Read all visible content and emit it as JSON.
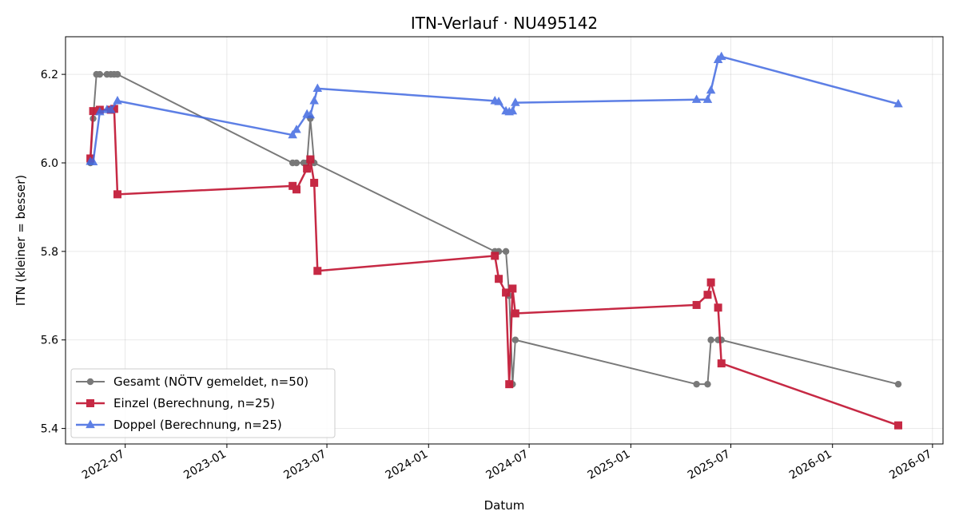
{
  "chart_data": {
    "type": "line",
    "title": "ITN-Verlauf · NU495142",
    "xlabel": "Datum",
    "ylabel": "ITN  (kleiner = besser)",
    "x_axis": {
      "type": "date",
      "range": [
        "2022-03-15",
        "2026-07-20"
      ],
      "ticks": [
        "2022-07-01",
        "2023-01-01",
        "2023-07-01",
        "2024-01-01",
        "2024-07-01",
        "2025-01-01",
        "2025-07-01",
        "2026-01-01",
        "2026-07-01"
      ],
      "tick_labels": [
        "2022-07",
        "2023-01",
        "2023-07",
        "2024-01",
        "2024-07",
        "2025-01",
        "2025-07",
        "2026-01",
        "2026-07"
      ],
      "tick_rotation": 30
    },
    "y_axis": {
      "range": [
        5.365,
        6.285
      ],
      "ticks": [
        5.4,
        5.6,
        5.8,
        6.0,
        6.2
      ],
      "tick_labels": [
        "5.4",
        "5.6",
        "5.8",
        "6.0",
        "6.2"
      ]
    },
    "grid": true,
    "legend_position": "lower-left",
    "series": [
      {
        "name": "Gesamt (NÖTV gemeldet, n=50)",
        "color": "#4d4d4d",
        "marker": "circle",
        "points": [
          [
            "2022-04-29",
            6.0
          ],
          [
            "2022-05-04",
            6.1
          ],
          [
            "2022-05-10",
            6.2
          ],
          [
            "2022-05-16",
            6.2
          ],
          [
            "2022-05-29",
            6.2
          ],
          [
            "2022-06-05",
            6.2
          ],
          [
            "2022-06-11",
            6.2
          ],
          [
            "2022-06-17",
            6.2
          ],
          [
            "2023-04-30",
            6.0
          ],
          [
            "2023-05-07",
            6.0
          ],
          [
            "2023-05-20",
            6.0
          ],
          [
            "2023-05-26",
            6.0
          ],
          [
            "2023-06-01",
            6.1
          ],
          [
            "2023-06-08",
            6.0
          ],
          [
            "2024-04-30",
            5.8
          ],
          [
            "2024-05-07",
            5.8
          ],
          [
            "2024-05-20",
            5.8
          ],
          [
            "2024-05-26",
            5.7
          ],
          [
            "2024-06-01",
            5.5
          ],
          [
            "2024-06-06",
            5.6
          ],
          [
            "2025-04-30",
            5.5
          ],
          [
            "2025-05-20",
            5.5
          ],
          [
            "2025-05-26",
            5.6
          ],
          [
            "2025-06-08",
            5.6
          ],
          [
            "2025-06-14",
            5.6
          ],
          [
            "2026-04-30",
            5.5
          ]
        ]
      },
      {
        "name": "Einzel (Berechnung, n=25)",
        "color": "#c41e3a",
        "marker": "square",
        "points": [
          [
            "2022-04-29",
            6.01
          ],
          [
            "2022-05-04",
            6.117
          ],
          [
            "2022-05-16",
            6.12
          ],
          [
            "2022-06-05",
            6.12
          ],
          [
            "2022-06-11",
            6.122
          ],
          [
            "2022-06-17",
            5.929
          ],
          [
            "2023-04-30",
            5.948
          ],
          [
            "2023-05-07",
            5.94
          ],
          [
            "2023-05-26",
            5.987
          ],
          [
            "2023-06-01",
            6.008
          ],
          [
            "2023-06-08",
            5.955
          ],
          [
            "2023-06-14",
            5.756
          ],
          [
            "2024-04-30",
            5.79
          ],
          [
            "2024-05-07",
            5.738
          ],
          [
            "2024-05-20",
            5.707
          ],
          [
            "2024-05-26",
            5.5
          ],
          [
            "2024-06-01",
            5.716
          ],
          [
            "2024-06-06",
            5.66
          ],
          [
            "2025-04-30",
            5.679
          ],
          [
            "2025-05-20",
            5.702
          ],
          [
            "2025-05-26",
            5.73
          ],
          [
            "2025-06-08",
            5.673
          ],
          [
            "2025-06-14",
            5.547
          ],
          [
            "2026-04-30",
            5.407
          ]
        ]
      },
      {
        "name": "Doppel (Berechnung, n=25)",
        "color": "#4169e1",
        "marker": "triangle",
        "points": [
          [
            "2022-04-29",
            6.003
          ],
          [
            "2022-05-04",
            6.002
          ],
          [
            "2022-05-16",
            6.115
          ],
          [
            "2022-05-29",
            6.12
          ],
          [
            "2022-06-05",
            6.12
          ],
          [
            "2022-06-17",
            6.14
          ],
          [
            "2023-04-30",
            6.063
          ],
          [
            "2023-05-07",
            6.075
          ],
          [
            "2023-05-26",
            6.11
          ],
          [
            "2023-06-01",
            6.108
          ],
          [
            "2023-06-08",
            6.14
          ],
          [
            "2023-06-14",
            6.168
          ],
          [
            "2024-04-30",
            6.14
          ],
          [
            "2024-05-07",
            6.138
          ],
          [
            "2024-05-20",
            6.117
          ],
          [
            "2024-05-26",
            6.115
          ],
          [
            "2024-06-01",
            6.117
          ],
          [
            "2024-06-06",
            6.136
          ],
          [
            "2025-04-30",
            6.143
          ],
          [
            "2025-05-20",
            6.143
          ],
          [
            "2025-05-26",
            6.164
          ],
          [
            "2025-06-08",
            6.233
          ],
          [
            "2025-06-14",
            6.24
          ],
          [
            "2026-04-30",
            6.133
          ]
        ]
      }
    ]
  }
}
